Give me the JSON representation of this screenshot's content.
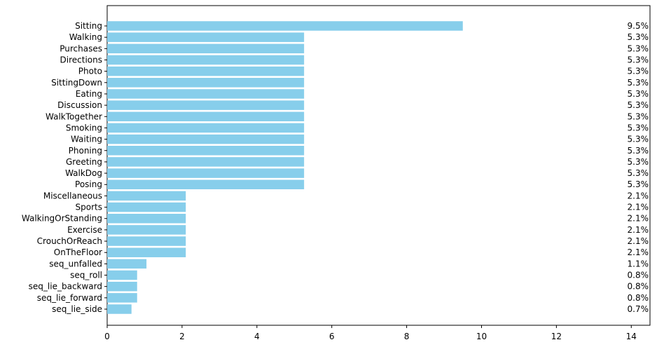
{
  "chart_data": {
    "type": "bar",
    "orientation": "horizontal",
    "bar_color": "#87CEEB",
    "categories": [
      "Sitting",
      "Walking",
      "Purchases",
      "Directions",
      "Photo",
      "SittingDown",
      "Eating",
      "Discussion",
      "WalkTogether",
      "Smoking",
      "Waiting",
      "Phoning",
      "Greeting",
      "WalkDog",
      "Posing",
      "Miscellaneous",
      "Sports",
      "WalkingOrStanding",
      "Exercise",
      "CrouchOrReach",
      "OnTheFloor",
      "seq_unfalled",
      "seq_roll",
      "seq_lie_backward",
      "seq_lie_forward",
      "seq_lie_side"
    ],
    "values": [
      9.5,
      5.26,
      5.26,
      5.26,
      5.26,
      5.26,
      5.26,
      5.26,
      5.26,
      5.26,
      5.26,
      5.26,
      5.26,
      5.26,
      5.26,
      2.1,
      2.1,
      2.1,
      2.1,
      2.1,
      2.1,
      1.05,
      0.8,
      0.8,
      0.8,
      0.65
    ],
    "data_labels": [
      "9.5%",
      "5.3%",
      "5.3%",
      "5.3%",
      "5.3%",
      "5.3%",
      "5.3%",
      "5.3%",
      "5.3%",
      "5.3%",
      "5.3%",
      "5.3%",
      "5.3%",
      "5.3%",
      "5.3%",
      "2.1%",
      "2.1%",
      "2.1%",
      "2.1%",
      "2.1%",
      "2.1%",
      "1.1%",
      "0.8%",
      "0.8%",
      "0.8%",
      "0.7%"
    ],
    "xlim": [
      0,
      14.5
    ],
    "x_ticks": [
      0,
      2,
      4,
      6,
      8,
      10,
      12,
      14
    ],
    "x_tick_labels": [
      "0",
      "2",
      "4",
      "6",
      "8",
      "10",
      "12",
      "14"
    ],
    "title": "",
    "xlabel": "",
    "ylabel": "",
    "grid": false,
    "legend": "none"
  }
}
